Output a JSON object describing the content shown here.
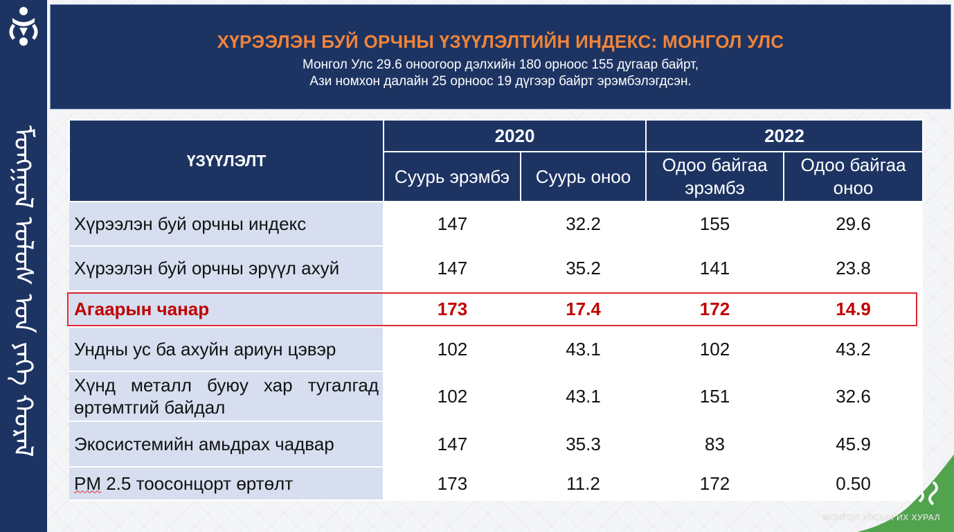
{
  "header": {
    "title": "ХҮРЭЭЛЭН БУЙ ОРЧНЫ ҮЗҮҮЛЭЛТИЙН ИНДЕКС: МОНГОЛ УЛС",
    "subtitle_line1": "Монгол Улс 29.6 оноогоор дэлхийн 180 орноос 155 дугаар байрт,",
    "subtitle_line2": "Ази номхон далайн 25 орноос 19 дүгээр байрт эрэмбэлэгдсэн."
  },
  "sidebar": {
    "script_text": "ᠮᠣᠩᠭᠣᠯ ᠤᠯᠤᠰ ᠤᠨ ᠶᠡᠬᠡ ᠬᠤᠷᠠᠯ"
  },
  "table": {
    "header_indicator": "ҮЗҮҮЛЭЛТ",
    "year1": "2020",
    "year2": "2022",
    "sub_headers": [
      "Суурь эрэмбэ",
      "Суурь оноо",
      "Одоо байгаа эрэмбэ",
      "Одоо байгаа оноо"
    ],
    "rows": [
      {
        "name": "Хүрээлэн буй орчны индекс",
        "v1": "147",
        "v2": "32.2",
        "v3": "155",
        "v4": "29.6"
      },
      {
        "name": "Хүрээлэн буй орчны эрүүл ахуй",
        "v1": "147",
        "v2": "35.2",
        "v3": "141",
        "v4": "23.8"
      },
      {
        "name": "Агаарын чанар",
        "v1": "173",
        "v2": "17.4",
        "v3": "172",
        "v4": "14.9"
      },
      {
        "name": "Ундны ус ба ахуйн ариун цэвэр",
        "v1": "102",
        "v2": "43.1",
        "v3": "102",
        "v4": "43.2"
      },
      {
        "name": "Хүнд металл буюу хар тугалгад өртөмтгий байдал",
        "v1": "102",
        "v2": "43.1",
        "v3": "151",
        "v4": "32.6"
      },
      {
        "name": "Экосистемийн амьдрах чадвар",
        "v1": "147",
        "v2": "35.3",
        "v3": "83",
        "v4": "45.9"
      },
      {
        "name_prefix": "PM",
        "name_rest": " 2.5 тоосонцорт өртөлт",
        "v1": "173",
        "v2": "11.2",
        "v3": "172",
        "v4": "0.50"
      }
    ]
  },
  "footer": {
    "text": "МОНГОЛ УЛСЫН ИХ ХУРАЛ"
  },
  "colors": {
    "navy": "#1d3463",
    "title_orange": "#f0843a",
    "highlight_red": "#c00000",
    "label_cell_blue": "#d6deef",
    "deco_green": "#3f9a3b"
  }
}
